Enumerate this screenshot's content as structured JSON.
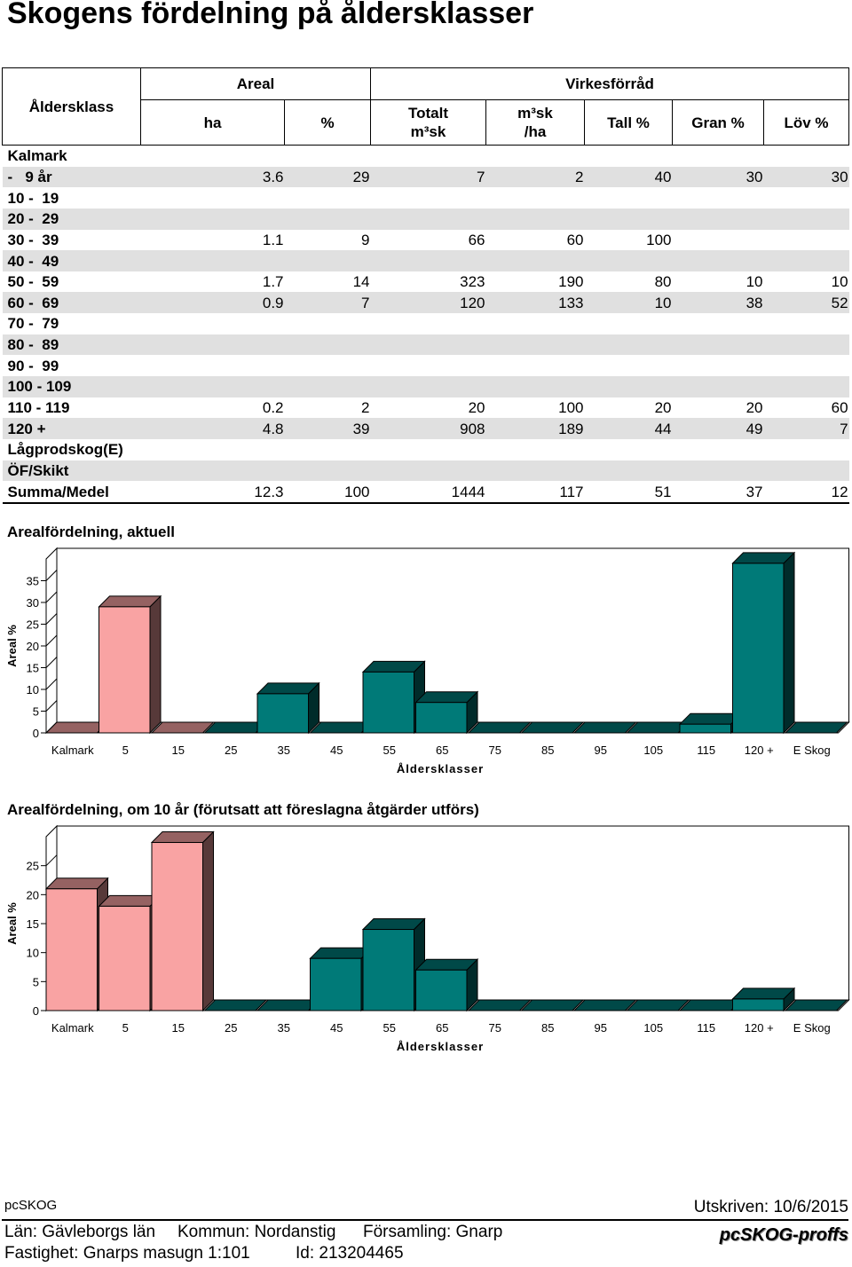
{
  "title": "Skogens fördelning på åldersklasser",
  "table": {
    "corner": "Åldersklass",
    "groups": [
      "Areal",
      "Virkesförråd"
    ],
    "columns": [
      "ha",
      "%",
      "Totalt\nm³sk",
      "m³sk\n/ha",
      "Tall %",
      "Gran %",
      "Löv %"
    ],
    "rows": [
      {
        "label": "Kalmark",
        "cells": [
          null,
          null,
          null,
          null,
          null,
          null,
          null
        ]
      },
      {
        "label": "-   9 år",
        "cells": [
          3.6,
          29,
          7,
          2,
          40,
          30,
          30
        ]
      },
      {
        "label": "10 -  19",
        "cells": [
          null,
          null,
          null,
          null,
          null,
          null,
          null
        ]
      },
      {
        "label": "20 -  29",
        "cells": [
          null,
          null,
          null,
          null,
          null,
          null,
          null
        ]
      },
      {
        "label": "30 -  39",
        "cells": [
          1.1,
          9,
          66,
          60,
          100,
          null,
          null
        ]
      },
      {
        "label": "40 -  49",
        "cells": [
          null,
          null,
          null,
          null,
          null,
          null,
          null
        ]
      },
      {
        "label": "50 -  59",
        "cells": [
          1.7,
          14,
          323,
          190,
          80,
          10,
          10
        ]
      },
      {
        "label": "60 -  69",
        "cells": [
          0.9,
          7,
          120,
          133,
          10,
          38,
          52
        ]
      },
      {
        "label": "70 -  79",
        "cells": [
          null,
          null,
          null,
          null,
          null,
          null,
          null
        ]
      },
      {
        "label": "80 -  89",
        "cells": [
          null,
          null,
          null,
          null,
          null,
          null,
          null
        ]
      },
      {
        "label": "90 -  99",
        "cells": [
          null,
          null,
          null,
          null,
          null,
          null,
          null
        ]
      },
      {
        "label": "100 - 109",
        "cells": [
          null,
          null,
          null,
          null,
          null,
          null,
          null
        ]
      },
      {
        "label": "110 - 119",
        "cells": [
          0.2,
          2,
          20,
          100,
          20,
          20,
          60
        ]
      },
      {
        "label": "120 +",
        "cells": [
          4.8,
          39,
          908,
          189,
          44,
          49,
          7
        ]
      },
      {
        "label": "Lågprodskog(E)",
        "cells": [
          null,
          null,
          null,
          null,
          null,
          null,
          null
        ]
      },
      {
        "label": "ÖF/Skikt",
        "cells": [
          null,
          null,
          null,
          null,
          null,
          null,
          null
        ]
      },
      {
        "label": "Summa/Medel",
        "cells": [
          12.3,
          100,
          1444,
          117,
          51,
          37,
          12
        ]
      }
    ]
  },
  "charts": [
    {
      "type": "bar",
      "title": "Arealfördelning, aktuell",
      "ylabel": "Areal %",
      "xlabel": "Åldersklasser",
      "categories": [
        "Kalmark",
        "5",
        "15",
        "25",
        "35",
        "45",
        "55",
        "65",
        "75",
        "85",
        "95",
        "105",
        "115",
        "120 +",
        "E Skog"
      ],
      "values": [
        0,
        29,
        0,
        0,
        9,
        0,
        14,
        7,
        0,
        0,
        0,
        0,
        2,
        39,
        0
      ],
      "colors": [
        "#f9a3a3",
        "#f9a3a3",
        "#f9a3a3",
        "#007a78",
        "#007a78",
        "#007a78",
        "#007a78",
        "#007a78",
        "#007a78",
        "#007a78",
        "#007a78",
        "#007a78",
        "#007a78",
        "#007a78",
        "#007a78"
      ],
      "ylim": [
        0,
        40
      ],
      "yticks": [
        0,
        5,
        10,
        15,
        20,
        25,
        30,
        35
      ]
    },
    {
      "type": "bar",
      "title": "Arealfördelning, om 10 år (förutsatt att föreslagna åtgärder utförs)",
      "ylabel": "Areal %",
      "xlabel": "Åldersklasser",
      "categories": [
        "Kalmark",
        "5",
        "15",
        "25",
        "35",
        "45",
        "55",
        "65",
        "75",
        "85",
        "95",
        "105",
        "115",
        "120 +",
        "E Skog"
      ],
      "values": [
        21,
        18,
        29,
        0,
        0,
        9,
        14,
        7,
        0,
        0,
        0,
        0,
        0,
        2,
        0
      ],
      "colors": [
        "#f9a3a3",
        "#f9a3a3",
        "#f9a3a3",
        "#007a78",
        "#007a78",
        "#007a78",
        "#007a78",
        "#007a78",
        "#007a78",
        "#007a78",
        "#007a78",
        "#007a78",
        "#007a78",
        "#007a78",
        "#007a78"
      ],
      "ylim": [
        0,
        30
      ],
      "yticks": [
        0,
        5,
        10,
        15,
        20,
        25
      ]
    }
  ],
  "footer": {
    "app": "pcSKOG",
    "printed": "Utskriven: 10/6/2015",
    "lan": "Län: Gävleborgs län",
    "kommun": "Kommun: Nordanstig",
    "forsamling": "Församling: Gnarp",
    "fastighet": "Fastighet: Gnarps masugn 1:101",
    "id": "Id: 213204465",
    "logo": "pcSKOG-proffs"
  }
}
